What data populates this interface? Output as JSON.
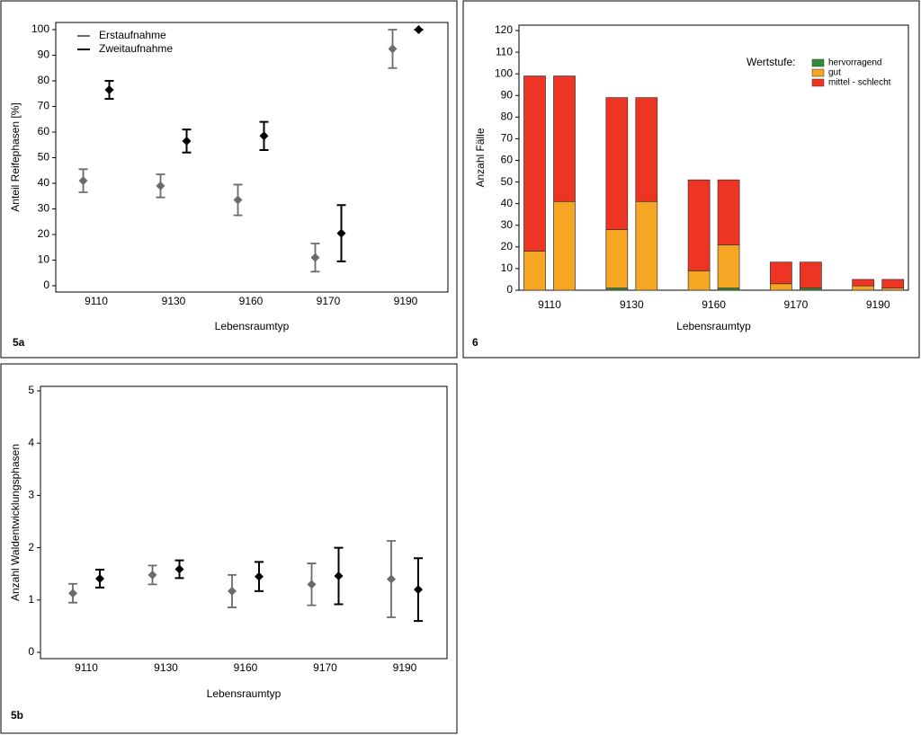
{
  "chart_data": [
    {
      "type": "errorbar",
      "panel_label": "5a",
      "ylabel": "Anteil Reifephasen [%]",
      "xlabel": "Lebensraumtyp",
      "categories": [
        "9110",
        "9130",
        "9160",
        "9170",
        "9190"
      ],
      "series": [
        {
          "name": "Erstaufnahme",
          "color": "#6b6b6b",
          "values": [
            41,
            39,
            33.5,
            11,
            92.5
          ],
          "errors": [
            4.5,
            4.5,
            6,
            5.5,
            7.5
          ]
        },
        {
          "name": "Zweitaufnahme",
          "color": "#000000",
          "values": [
            76.5,
            56.5,
            58.5,
            20.5,
            100
          ],
          "errors": [
            3.5,
            4.5,
            5.5,
            11,
            0
          ]
        }
      ],
      "ylim": [
        0,
        100
      ],
      "yticks": [
        0,
        10,
        20,
        30,
        40,
        50,
        60,
        70,
        80,
        90,
        100
      ],
      "legend": "top-left"
    },
    {
      "type": "stacked-bar",
      "panel_label": "6",
      "ylabel": "Anzahl Fälle",
      "xlabel": "Lebensraumtyp",
      "legend_title": "Wertstufe:",
      "categories": [
        "9110",
        "9130",
        "9160",
        "9170",
        "9190"
      ],
      "series": [
        {
          "name": "hervorragend",
          "color": "#2e8b3a",
          "values": [
            [
              0,
              0
            ],
            [
              1,
              0
            ],
            [
              0,
              1
            ],
            [
              0,
              1
            ],
            [
              0,
              0
            ]
          ]
        },
        {
          "name": "gut",
          "color": "#f5a623",
          "values": [
            [
              18,
              41
            ],
            [
              27,
              41
            ],
            [
              9,
              20
            ],
            [
              3,
              0
            ],
            [
              2,
              1
            ]
          ]
        },
        {
          "name": "mittel - schlecht",
          "color": "#ee3524",
          "values": [
            [
              81,
              58
            ],
            [
              61,
              48
            ],
            [
              42,
              30
            ],
            [
              10,
              12
            ],
            [
              3,
              4
            ]
          ]
        }
      ],
      "ylim": [
        0,
        120
      ],
      "yticks": [
        0,
        10,
        20,
        30,
        40,
        50,
        60,
        70,
        80,
        90,
        100,
        110,
        120
      ],
      "legend": "top-right"
    },
    {
      "type": "errorbar",
      "panel_label": "5b",
      "ylabel": "Anzahl Waldentwicklungsphasen",
      "xlabel": "Lebensraumtyp",
      "categories": [
        "9110",
        "9130",
        "9160",
        "9170",
        "9190"
      ],
      "series": [
        {
          "color": "#6b6b6b",
          "values": [
            1.13,
            1.48,
            1.17,
            1.3,
            1.4
          ],
          "errors": [
            0.18,
            0.18,
            0.31,
            0.4,
            0.73
          ]
        },
        {
          "color": "#000000",
          "values": [
            1.41,
            1.59,
            1.45,
            1.46,
            1.2
          ],
          "errors": [
            0.17,
            0.17,
            0.28,
            0.54,
            0.6
          ]
        }
      ],
      "ylim": [
        0,
        5
      ],
      "yticks": [
        0,
        1,
        2,
        3,
        4,
        5
      ]
    }
  ]
}
